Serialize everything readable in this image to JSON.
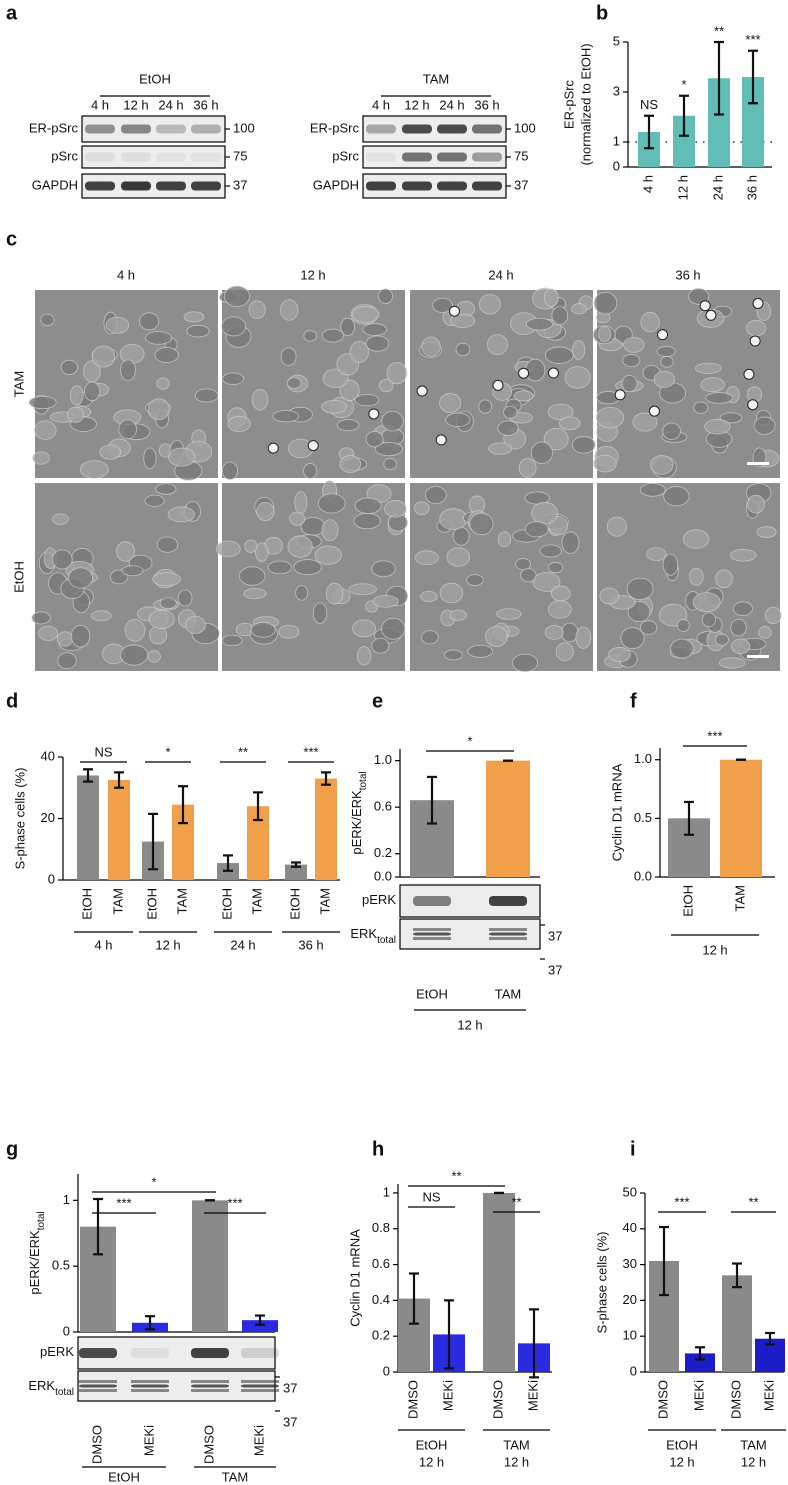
{
  "panels": [
    "a",
    "b",
    "c",
    "d",
    "e",
    "f",
    "g",
    "h",
    "i"
  ],
  "blot_a": {
    "left": {
      "group": "EtOH",
      "times": [
        "4 h",
        "12 h",
        "24 h",
        "36 h"
      ],
      "rows": [
        "ER-pSrc",
        "pSrc",
        "GAPDH"
      ],
      "markers": [
        100,
        75,
        37
      ]
    },
    "right": {
      "group": "TAM",
      "times": [
        "4 h",
        "12 h",
        "24 h",
        "36 h"
      ],
      "rows": [
        "ER-pSrc",
        "pSrc",
        "GAPDH"
      ],
      "markers": [
        100,
        75,
        37
      ]
    }
  },
  "micrographs": {
    "columns": [
      "4 h",
      "12 h",
      "24 h",
      "36 h"
    ],
    "rows": [
      "TAM",
      "EtOH"
    ]
  },
  "blot_e": {
    "rows": [
      {
        "main": "pERK"
      },
      {
        "main": "ERK",
        "sub": "total"
      }
    ],
    "markers": [
      37,
      37
    ]
  },
  "blot_g": {
    "rows": [
      {
        "main": "pERK"
      },
      {
        "main": "ERK",
        "sub": "total"
      }
    ],
    "markers": [
      37,
      37
    ]
  },
  "chart_data": [
    {
      "type": "bar",
      "ylabel": [
        "ER-pSrc",
        "(normalized to EtOH)"
      ],
      "categories": [
        "4 h",
        "12 h",
        "24 h",
        "36 h"
      ],
      "values": [
        1.4,
        2.05,
        3.55,
        3.6
      ],
      "errors": [
        0.65,
        0.8,
        1.45,
        1.05
      ],
      "annotations": [
        "NS",
        "*",
        "**",
        "***"
      ],
      "color": "#62bdb7",
      "refline": 1,
      "ylim": [
        0,
        5
      ],
      "yticks": [
        0,
        1,
        3,
        5
      ]
    },
    {
      "type": "bar",
      "ylabel": "S-phase cells (%)",
      "categories": [
        "4 h",
        "12 h",
        "24 h",
        "36 h"
      ],
      "series": [
        {
          "name": "EtOH",
          "color": "#8a8a8a",
          "values": [
            34,
            12.5,
            5.5,
            5
          ],
          "errors": [
            2,
            9,
            2.5,
            0.7
          ]
        },
        {
          "name": "TAM",
          "color": "#f0a04b",
          "values": [
            32.5,
            24.5,
            24,
            33
          ],
          "errors": [
            2.5,
            6,
            4.5,
            2
          ]
        }
      ],
      "significance": [
        "NS",
        "*",
        "**",
        "***"
      ],
      "ylim": [
        0,
        40
      ],
      "yticks": [
        0,
        20,
        40
      ]
    },
    {
      "type": "bar",
      "ylabel": {
        "main": "pERK/ERK",
        "sub": "total"
      },
      "categories": [
        "EtOH",
        "TAM"
      ],
      "group": "12 h",
      "values": [
        0.66,
        1.0
      ],
      "errors": [
        0.2,
        0
      ],
      "colors": [
        "#8a8a8a",
        "#f0a04b"
      ],
      "significance": [
        "*"
      ],
      "ylim": [
        0,
        1.1
      ],
      "yticks": [
        {
          "value": 0,
          "label": "0.0"
        },
        {
          "value": 0.2,
          "label": "0.2"
        },
        {
          "value": 0.6,
          "label": "0.6"
        },
        {
          "value": 1,
          "label": "1.0"
        }
      ]
    },
    {
      "type": "bar",
      "ylabel": "Cyclin D1 mRNA",
      "categories": [
        "EtOH",
        "TAM"
      ],
      "group": "12 h",
      "values": [
        0.5,
        1.0
      ],
      "errors": [
        0.14,
        0
      ],
      "colors": [
        "#8a8a8a",
        "#f0a04b"
      ],
      "significance": [
        "***"
      ],
      "ylim": [
        0,
        1.1
      ],
      "yticks": [
        {
          "value": 0,
          "label": "0.0"
        },
        {
          "value": 0.5,
          "label": "0.5"
        },
        {
          "value": 1,
          "label": "1.0"
        }
      ]
    },
    {
      "type": "bar",
      "ylabel": {
        "main": "pERK/ERK",
        "sub": "total"
      },
      "categories": [
        "DMSO",
        "MEKi",
        "DMSO",
        "MEKi"
      ],
      "groups": [
        {
          "name": "EtOH"
        },
        {
          "name": "TAM"
        }
      ],
      "values": [
        0.8,
        0.07,
        1.0,
        0.09
      ],
      "errors": [
        0.21,
        0.05,
        0,
        0.035
      ],
      "colors": [
        "#8a8a8a",
        "#2a2ae0",
        "#8a8a8a",
        "#2a2ae0"
      ],
      "significance": [
        "***",
        "*",
        "***"
      ],
      "ylim": [
        0,
        1.2
      ],
      "yticks": [
        0,
        0.5,
        1
      ]
    },
    {
      "type": "bar",
      "ylabel": "Cyclin D1 mRNA",
      "categories": [
        "DMSO",
        "MEKi",
        "DMSO",
        "MEKi"
      ],
      "groups": [
        {
          "name": "EtOH",
          "time": "12 h"
        },
        {
          "name": "TAM",
          "time": "12 h"
        }
      ],
      "values": [
        0.41,
        0.21,
        1.0,
        0.16
      ],
      "errors": [
        0.14,
        0.19,
        0,
        0.19
      ],
      "colors": [
        "#8a8a8a",
        "#2a2ae0",
        "#8a8a8a",
        "#2a2ae0"
      ],
      "significance": [
        "NS",
        "**",
        "**"
      ],
      "ylim": [
        0,
        1.05
      ],
      "yticks": [
        0,
        0.2,
        0.4,
        0.6,
        0.8,
        1
      ]
    },
    {
      "type": "bar",
      "ylabel": "S-phase cells (%)",
      "categories": [
        "DMSO",
        "MEKi",
        "DMSO",
        "MEKi"
      ],
      "groups": [
        {
          "name": "EtOH",
          "time": "12 h"
        },
        {
          "name": "TAM",
          "time": "12 h"
        }
      ],
      "values": [
        31,
        5.2,
        27,
        9.3
      ],
      "errors": [
        9.5,
        1.7,
        3.3,
        1.6
      ],
      "colors": [
        "#8a8a8a",
        "#1d1dc8",
        "#8a8a8a",
        "#1d1dc8"
      ],
      "significance": [
        "***",
        "**"
      ],
      "ylim": [
        0,
        50
      ],
      "yticks": [
        0,
        10,
        20,
        30,
        40,
        50
      ]
    }
  ]
}
